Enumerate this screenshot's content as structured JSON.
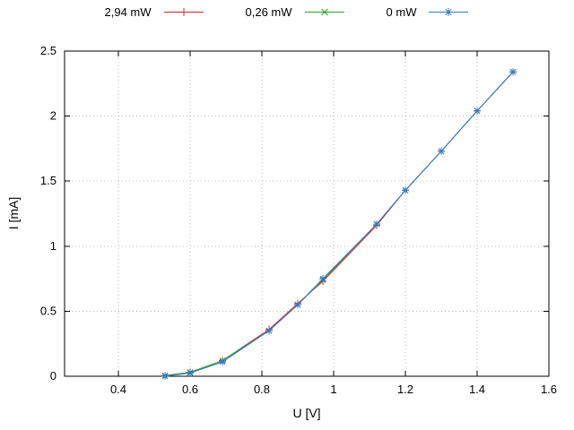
{
  "chart_data": {
    "type": "line",
    "title": "",
    "xlabel": "U [V]",
    "ylabel": "I [mA]",
    "xlim": [
      0.25,
      1.6
    ],
    "ylim": [
      0,
      2.5
    ],
    "xticks": [
      0.4,
      0.6,
      0.8,
      1,
      1.2,
      1.4,
      1.6
    ],
    "yticks": [
      0,
      0.5,
      1,
      1.5,
      2,
      2.5
    ],
    "grid": true,
    "legend_position": "top-center",
    "series": [
      {
        "name": "2,94 mW",
        "color": "#dd2222",
        "marker": "plus",
        "points": [
          [
            0.53,
            0.005
          ],
          [
            0.6,
            0.03
          ],
          [
            0.69,
            0.12
          ],
          [
            0.82,
            0.36
          ],
          [
            0.9,
            0.56
          ],
          [
            0.97,
            0.73
          ],
          [
            1.12,
            1.16
          ],
          [
            1.2,
            1.43
          ],
          [
            1.3,
            1.73
          ],
          [
            1.4,
            2.04
          ],
          [
            1.5,
            2.34
          ]
        ]
      },
      {
        "name": "0,26 mW",
        "color": "#28a228",
        "marker": "cross",
        "points": [
          [
            0.53,
            0.005
          ],
          [
            0.6,
            0.03
          ],
          [
            0.69,
            0.12
          ],
          [
            0.82,
            0.35
          ],
          [
            0.9,
            0.55
          ],
          [
            0.97,
            0.74
          ],
          [
            1.12,
            1.17
          ],
          [
            1.2,
            1.43
          ],
          [
            1.3,
            1.73
          ],
          [
            1.4,
            2.04
          ],
          [
            1.5,
            2.34
          ]
        ]
      },
      {
        "name": "0 mW",
        "color": "#3377cc",
        "marker": "asterisk",
        "points": [
          [
            0.53,
            0.0
          ],
          [
            0.6,
            0.025
          ],
          [
            0.69,
            0.11
          ],
          [
            0.82,
            0.35
          ],
          [
            0.9,
            0.55
          ],
          [
            0.97,
            0.75
          ],
          [
            1.12,
            1.17
          ],
          [
            1.2,
            1.43
          ],
          [
            1.3,
            1.73
          ],
          [
            1.4,
            2.04
          ],
          [
            1.5,
            2.34
          ]
        ]
      }
    ]
  }
}
